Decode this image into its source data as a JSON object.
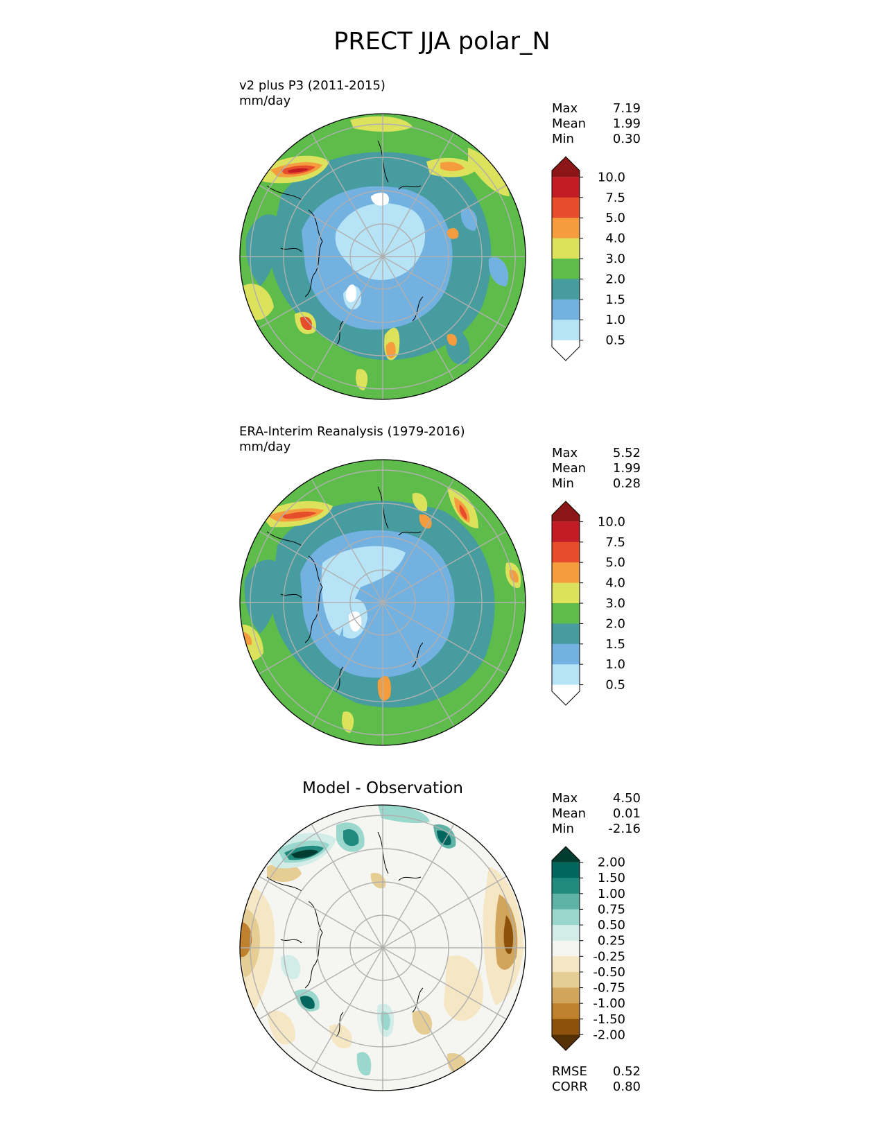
{
  "title": "PRECT JJA polar_N",
  "panels": [
    {
      "id": "test",
      "subtitle": "v2 plus P3 (2011-2015)",
      "units": "mm/day",
      "stats": [
        {
          "label": "Max",
          "value": "7.19"
        },
        {
          "label": "Mean",
          "value": "1.99"
        },
        {
          "label": "Min",
          "value": "0.30"
        }
      ],
      "colorbar": {
        "ticks": [
          "10.0",
          "7.5",
          "5.0",
          "4.0",
          "3.0",
          "2.0",
          "1.5",
          "1.0",
          "0.5"
        ],
        "colors": [
          "#ffffff",
          "#b6e3f6",
          "#72b1e0",
          "#469c9e",
          "#5ebd4a",
          "#dde25c",
          "#f59c3f",
          "#e64e2b",
          "#c31c24",
          "#8c1518"
        ]
      }
    },
    {
      "id": "reference",
      "subtitle": "ERA-Interim Reanalysis (1979-2016)",
      "units": "mm/day",
      "stats": [
        {
          "label": "Max",
          "value": "5.52"
        },
        {
          "label": "Mean",
          "value": "1.99"
        },
        {
          "label": "Min",
          "value": "0.28"
        }
      ],
      "colorbar": {
        "ticks": [
          "10.0",
          "7.5",
          "5.0",
          "4.0",
          "3.0",
          "2.0",
          "1.5",
          "1.0",
          "0.5"
        ],
        "colors": [
          "#ffffff",
          "#b6e3f6",
          "#72b1e0",
          "#469c9e",
          "#5ebd4a",
          "#dde25c",
          "#f59c3f",
          "#e64e2b",
          "#c31c24",
          "#8c1518"
        ]
      }
    },
    {
      "id": "diff",
      "title": "Model - Observation",
      "stats": [
        {
          "label": "Max",
          "value": "4.50"
        },
        {
          "label": "Mean",
          "value": "0.01"
        },
        {
          "label": "Min",
          "value": "-2.16"
        }
      ],
      "colorbar": {
        "ticks": [
          "2.00",
          "1.50",
          "1.00",
          "0.75",
          "0.50",
          "0.25",
          "-0.25",
          "-0.50",
          "-0.75",
          "-1.00",
          "-1.50",
          "-2.00"
        ],
        "colors": [
          "#543005",
          "#8c510a",
          "#bf812d",
          "#d1a55b",
          "#e6cd94",
          "#f5e6c4",
          "#f5f5f2",
          "#d2ede8",
          "#9ad7cc",
          "#5eb3a6",
          "#218a7e",
          "#01665e",
          "#003c30"
        ]
      },
      "metrics": [
        {
          "label": "RMSE",
          "value": "0.52"
        },
        {
          "label": "CORR",
          "value": "0.80"
        }
      ]
    }
  ]
}
